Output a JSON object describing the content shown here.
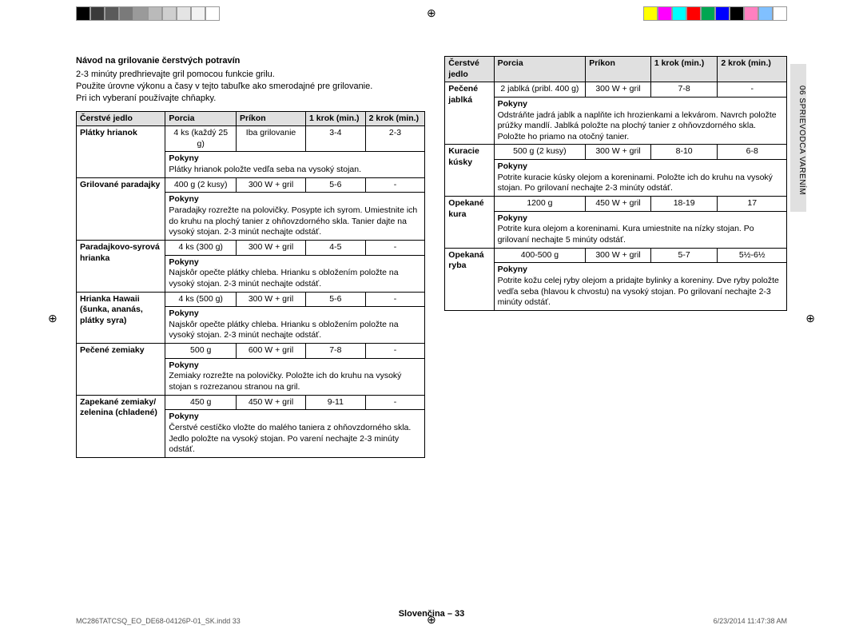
{
  "colorbar_left": [
    "#000000",
    "#3a3a3a",
    "#5a5a5a",
    "#7a7a7a",
    "#9a9a9a",
    "#bababa",
    "#cfcfcf",
    "#e4e4e4",
    "#f2f2f2",
    "#ffffff"
  ],
  "colorbar_right": [
    "#ffff00",
    "#ff00ff",
    "#00ffff",
    "#ff0000",
    "#00a651",
    "#0000ff",
    "#000000",
    "#ff80c0",
    "#80c0ff",
    "#ffffff"
  ],
  "heading": "Návod na grilovanie čerstvých potravín",
  "intro_lines": [
    "2-3 minúty predhrievajte gril pomocou funkcie grilu.",
    "Použite úrovne výkonu a časy v tejto tabuľke ako smerodajné pre grilovanie.",
    "Pri ich vyberaní používajte chňapky."
  ],
  "table_headers": [
    "Čerstvé jedlo",
    "Porcia",
    "Príkon",
    "1 krok (min.)",
    "2 krok (min.)"
  ],
  "left_rows": [
    {
      "name": "Plátky hrianok",
      "porcia": "4 ks (každý 25 g)",
      "prikon": "Iba grilovanie",
      "k1": "3-4",
      "k2": "2-3",
      "pokyny": "Plátky hrianok položte vedľa seba na vysoký stojan."
    },
    {
      "name": "Grilované paradajky",
      "porcia": "400 g (2 kusy)",
      "prikon": "300 W + gril",
      "k1": "5-6",
      "k2": "-",
      "pokyny": "Paradajky rozrežte na polovičky. Posypte ich syrom. Umiestnite ich do kruhu na plochý tanier z ohňovzdorného skla. Tanier dajte na vysoký stojan. 2-3 minút nechajte odstáť."
    },
    {
      "name": "Paradajkovo-syrová hrianka",
      "porcia": "4 ks (300 g)",
      "prikon": "300 W + gril",
      "k1": "4-5",
      "k2": "-",
      "pokyny": "Najskôr opečte plátky chleba. Hrianku s obložením položte na vysoký stojan. 2-3 minút nechajte odstáť."
    },
    {
      "name": "Hrianka Hawaii (šunka, ananás, plátky syra)",
      "porcia": "4 ks (500 g)",
      "prikon": "300 W + gril",
      "k1": "5-6",
      "k2": "-",
      "pokyny": "Najskôr opečte plátky chleba. Hrianku s obložením položte na vysoký stojan. 2-3 minút nechajte odstáť."
    },
    {
      "name": "Pečené zemiaky",
      "porcia": "500 g",
      "prikon": "600 W + gril",
      "k1": "7-8",
      "k2": "-",
      "pokyny": "Zemiaky rozrežte na polovičky. Položte ich do kruhu na vysoký stojan s rozrezanou stranou na gril."
    },
    {
      "name": "Zapekané zemiaky/ zelenina (chladené)",
      "porcia": "450 g",
      "prikon": "450 W + gril",
      "k1": "9-11",
      "k2": "-",
      "pokyny": "Čerstvé cestíčko vložte do malého taniera z ohňovzdorného skla. Jedlo položte na vysoký stojan. Po varení nechajte 2-3 minúty odstáť."
    }
  ],
  "right_rows": [
    {
      "name": "Pečené jablká",
      "porcia": "2 jablká (pribl. 400 g)",
      "prikon": "300 W + gril",
      "k1": "7-8",
      "k2": "-",
      "pokyny": "Odstráňte jadrá jablk a naplňte ich hrozienkami a lekvárom. Navrch položte prúžky mandlí. Jablká položte na plochý tanier z ohňovzdorného skla. Položte ho priamo na otočný tanier."
    },
    {
      "name": "Kuracie kúsky",
      "porcia": "500 g (2 kusy)",
      "prikon": "300 W + gril",
      "k1": "8-10",
      "k2": "6-8",
      "pokyny": "Potrite kuracie kúsky olejom a koreninami. Položte ich do kruhu na vysoký stojan. Po grilovaní nechajte 2-3 minúty odstáť."
    },
    {
      "name": "Opekané kura",
      "porcia": "1200 g",
      "prikon": "450 W + gril",
      "k1": "18-19",
      "k2": "17",
      "pokyny": "Potrite kura olejom a koreninami. Kura umiestnite na nízky stojan. Po grilovaní nechajte 5 minúty odstáť."
    },
    {
      "name": "Opekaná ryba",
      "porcia": "400-500 g",
      "prikon": "300 W + gril",
      "k1": "5-7",
      "k2": "5½-6½",
      "pokyny": "Potrite kožu celej ryby olejom a pridajte bylinky a koreniny. Dve ryby položte vedľa seba (hlavou k chvostu) na vysoký stojan. Po grilovaní nechajte 2-3 minúty odstáť."
    }
  ],
  "pokyny_label": "Pokyny",
  "side_tab": "06  SPRIEVODCA VARENÍM",
  "footer_center": "Slovenčina – 33",
  "footer_left": "MC286TATCSQ_EO_DE68-04126P-01_SK.indd   33",
  "footer_right": "6/23/2014   11:47:38 AM"
}
